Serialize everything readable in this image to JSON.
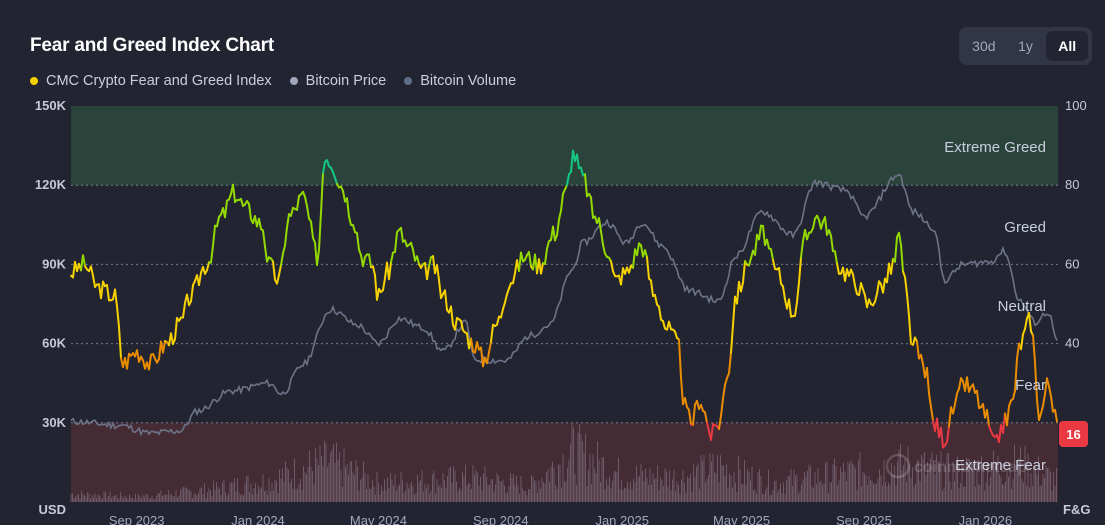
{
  "title": "Fear and Greed Index Chart",
  "range_tabs": [
    {
      "label": "30d",
      "active": false
    },
    {
      "label": "1y",
      "active": false
    },
    {
      "label": "All",
      "active": true
    }
  ],
  "legend": [
    {
      "label": "CMC Crypto Fear and Greed Index",
      "color": "#f5d100"
    },
    {
      "label": "Bitcoin Price",
      "color": "#a1a7bb"
    },
    {
      "label": "Bitcoin Volume",
      "color": "#616e85"
    }
  ],
  "left_axis": {
    "unit_label": "USD",
    "ticks": [
      "150K",
      "120K",
      "90K",
      "60K",
      "30K"
    ]
  },
  "right_axis": {
    "unit_label": "F&G",
    "ticks": [
      "100",
      "80",
      "60",
      "40"
    ]
  },
  "zones": [
    {
      "label": "Extreme Greed",
      "from": 80,
      "to": 100,
      "color": "#2c4a3e"
    },
    {
      "label": "Greed",
      "from": 60,
      "to": 80,
      "color": ""
    },
    {
      "label": "Neutral",
      "from": 40,
      "to": 60,
      "color": ""
    },
    {
      "label": "Fear",
      "from": 20,
      "to": 40,
      "color": ""
    },
    {
      "label": "Extreme Fear",
      "from": 0,
      "to": 20,
      "color": "#4a2d35"
    }
  ],
  "current_value_badge": {
    "value": "16",
    "color": "#ea3943"
  },
  "watermark": "coinmarketcap",
  "chart_data": {
    "type": "line",
    "x_tick_labels": [
      "Sep 2023",
      "Jan 2024",
      "May 2024",
      "Sep 2024",
      "Jan 2025",
      "May 2025",
      "Sep 2025",
      "Jan 2026"
    ],
    "x_range": [
      "2023-06-27",
      "2026-03-15"
    ],
    "left_ylim": [
      0,
      150000
    ],
    "right_ylim": [
      0,
      100
    ],
    "series": [
      {
        "name": "CMC Crypto Fear and Greed Index",
        "axis": "right",
        "x": [
          "2023-06-27",
          "2023-07-10",
          "2023-07-25",
          "2023-08-10",
          "2023-08-18",
          "2023-09-01",
          "2023-09-15",
          "2023-10-01",
          "2023-10-15",
          "2023-10-25",
          "2023-11-10",
          "2023-11-25",
          "2023-12-08",
          "2023-12-20",
          "2024-01-05",
          "2024-01-12",
          "2024-01-22",
          "2024-02-01",
          "2024-02-15",
          "2024-03-01",
          "2024-03-08",
          "2024-03-14",
          "2024-03-25",
          "2024-04-05",
          "2024-04-15",
          "2024-04-25",
          "2024-05-01",
          "2024-05-10",
          "2024-05-22",
          "2024-06-01",
          "2024-06-15",
          "2024-06-25",
          "2024-07-05",
          "2024-07-20",
          "2024-08-05",
          "2024-08-15",
          "2024-08-28",
          "2024-09-10",
          "2024-09-25",
          "2024-10-10",
          "2024-10-25",
          "2024-11-05",
          "2024-11-13",
          "2024-11-22",
          "2024-12-05",
          "2024-12-17",
          "2024-12-25",
          "2025-01-05",
          "2025-01-20",
          "2025-02-03",
          "2025-02-15",
          "2025-02-26",
          "2025-03-05",
          "2025-03-11",
          "2025-03-20",
          "2025-04-01",
          "2025-04-08",
          "2025-04-18",
          "2025-04-25",
          "2025-05-10",
          "2025-05-22",
          "2025-06-05",
          "2025-06-22",
          "2025-07-05",
          "2025-07-14",
          "2025-07-25",
          "2025-08-05",
          "2025-08-14",
          "2025-08-25",
          "2025-09-05",
          "2025-09-20",
          "2025-10-01",
          "2025-10-06",
          "2025-10-11",
          "2025-10-20",
          "2025-11-01",
          "2025-11-10",
          "2025-11-21",
          "2025-12-01",
          "2025-12-10",
          "2025-12-20",
          "2026-01-01",
          "2026-01-10",
          "2026-01-20",
          "2026-01-28",
          "2026-02-05",
          "2026-02-15",
          "2026-02-25",
          "2026-03-05",
          "2026-03-12",
          "2026-03-15"
        ],
        "values": [
          58,
          60,
          54,
          52,
          35,
          38,
          35,
          40,
          45,
          52,
          60,
          72,
          78,
          74,
          70,
          60,
          56,
          72,
          77,
          62,
          88,
          86,
          80,
          72,
          62,
          60,
          52,
          58,
          68,
          64,
          58,
          60,
          52,
          45,
          40,
          36,
          45,
          56,
          62,
          60,
          68,
          78,
          88,
          82,
          72,
          64,
          56,
          58,
          65,
          52,
          44,
          40,
          24,
          20,
          26,
          17,
          20,
          34,
          52,
          62,
          68,
          58,
          48,
          67,
          72,
          70,
          60,
          58,
          55,
          50,
          55,
          60,
          68,
          56,
          40,
          34,
          20,
          16,
          24,
          30,
          28,
          22,
          14,
          20,
          25,
          40,
          46,
          22,
          30,
          24,
          16
        ]
      },
      {
        "name": "Bitcoin Price",
        "axis": "left",
        "x": [
          "2023-06-27",
          "2023-08-15",
          "2023-09-15",
          "2023-10-15",
          "2023-11-01",
          "2023-12-05",
          "2024-01-12",
          "2024-01-25",
          "2024-02-15",
          "2024-03-14",
          "2024-04-10",
          "2024-05-01",
          "2024-05-22",
          "2024-06-15",
          "2024-07-05",
          "2024-07-28",
          "2024-08-05",
          "2024-09-06",
          "2024-09-30",
          "2024-10-20",
          "2024-11-12",
          "2024-11-22",
          "2024-12-17",
          "2025-01-05",
          "2025-01-21",
          "2025-02-10",
          "2025-03-10",
          "2025-04-08",
          "2025-04-25",
          "2025-05-22",
          "2025-06-22",
          "2025-07-14",
          "2025-08-14",
          "2025-09-01",
          "2025-10-06",
          "2025-10-20",
          "2025-11-10",
          "2025-11-21",
          "2025-12-10",
          "2026-01-05",
          "2026-01-20",
          "2026-02-05",
          "2026-02-20",
          "2026-03-05",
          "2026-03-15"
        ],
        "values": [
          30500,
          29000,
          26000,
          27000,
          34500,
          42000,
          45000,
          41000,
          52000,
          73000,
          67000,
          60000,
          69500,
          66000,
          57000,
          68000,
          54000,
          53500,
          63000,
          67000,
          88000,
          98000,
          106000,
          98000,
          106000,
          97000,
          80000,
          76000,
          93000,
          110000,
          101000,
          121000,
          118000,
          108000,
          124000,
          110000,
          104000,
          84000,
          90000,
          91000,
          95000,
          76000,
          68000,
          72000,
          60000
        ]
      },
      {
        "name": "Bitcoin Volume",
        "axis": "left",
        "x": [
          "2023-06-27",
          "2023-09-01",
          "2023-11-01",
          "2024-01-12",
          "2024-03-12",
          "2024-05-01",
          "2024-08-05",
          "2024-10-01",
          "2024-11-13",
          "2025-01-01",
          "2025-03-01",
          "2025-04-08",
          "2025-06-01",
          "2025-08-01",
          "2025-10-11",
          "2025-12-01",
          "2026-02-05",
          "2026-03-15"
        ],
        "values": [
          3000,
          2000,
          4000,
          8000,
          15000,
          7000,
          9000,
          6000,
          19000,
          10000,
          9000,
          13000,
          7000,
          10000,
          14000,
          11000,
          14000,
          8000
        ]
      }
    ]
  }
}
